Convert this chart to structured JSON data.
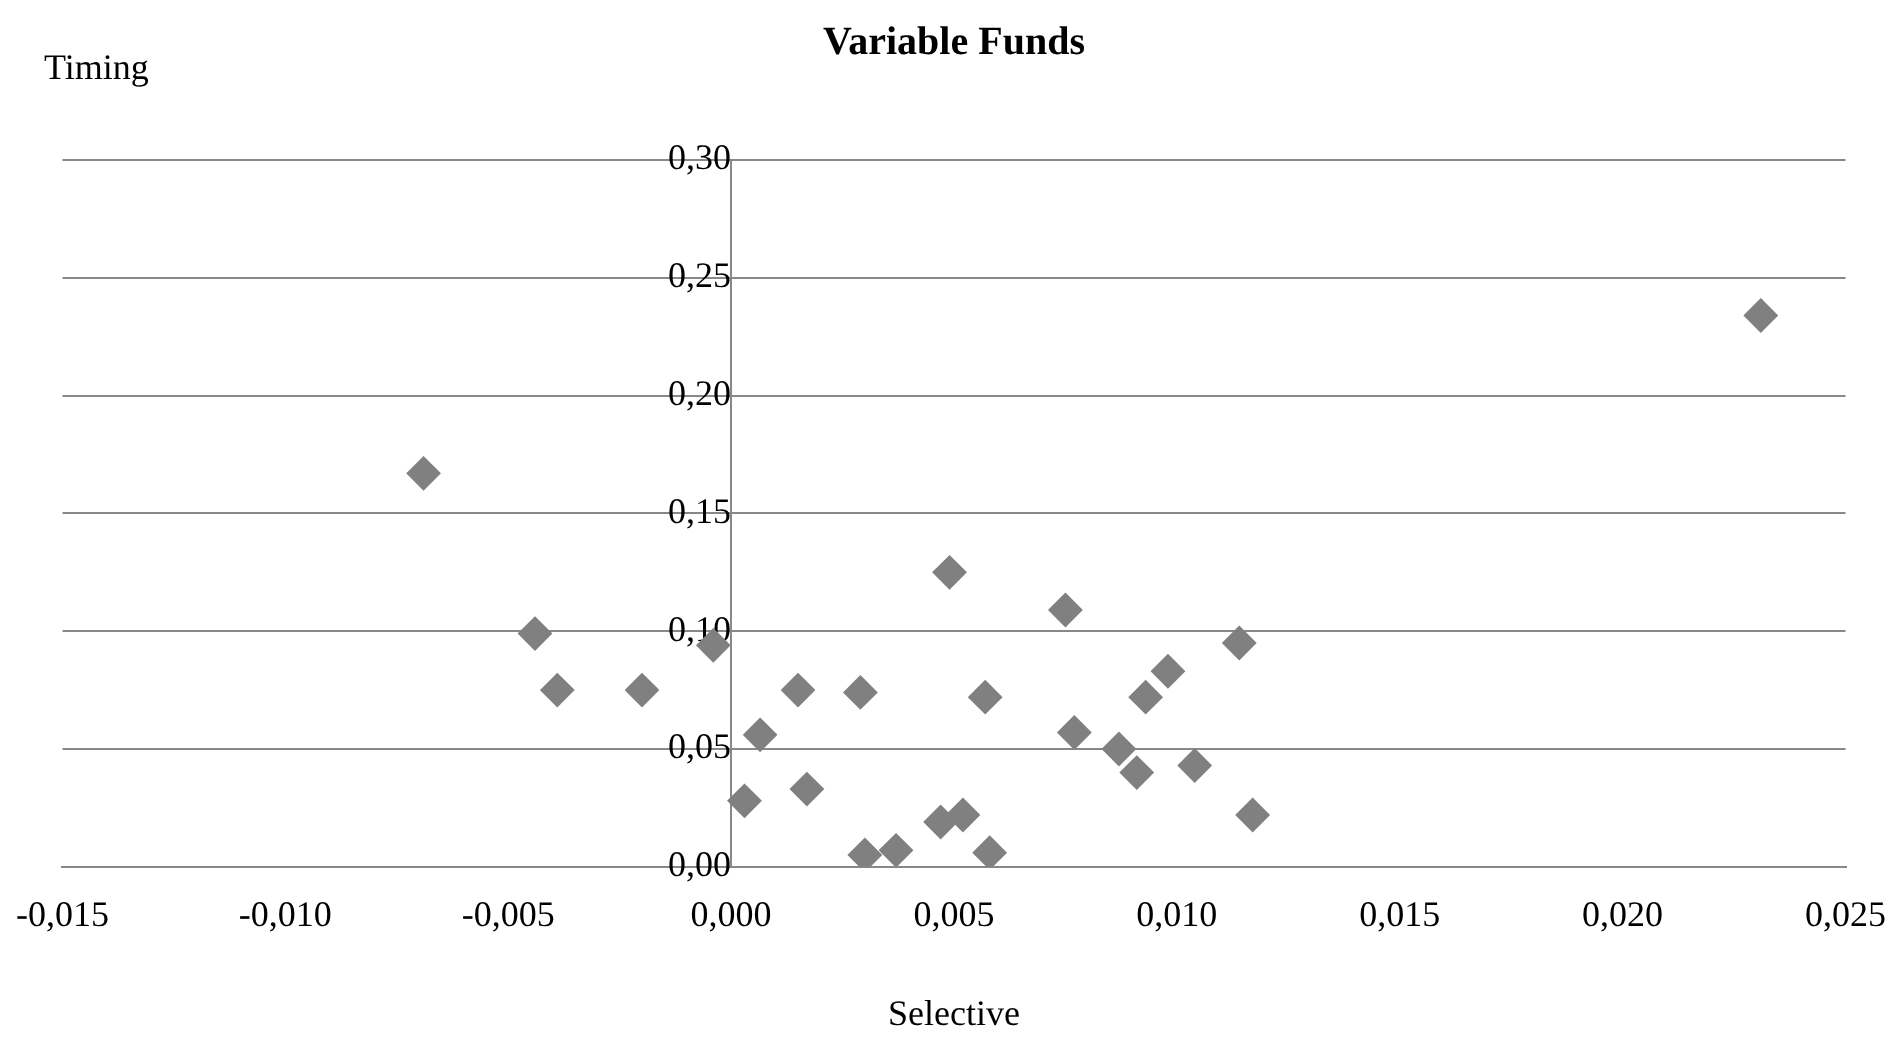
{
  "chart_data": {
    "type": "scatter",
    "title": "Variable Funds",
    "xlabel": "Selective",
    "ylabel": "Timing",
    "x": [
      -0.0069,
      -0.0044,
      -0.0039,
      -0.002,
      -0.0004,
      0.00065,
      0.0003,
      0.0015,
      0.0017,
      0.0029,
      0.003,
      0.0037,
      0.0049,
      0.0047,
      0.0052,
      0.0058,
      0.0057,
      0.0075,
      0.0077,
      0.0093,
      0.0098,
      0.0114,
      0.0087,
      0.0091,
      0.0104,
      0.0117,
      0.0231
    ],
    "values": [
      0.167,
      0.099,
      0.075,
      0.075,
      0.094,
      0.056,
      0.028,
      0.075,
      0.033,
      0.074,
      0.005,
      0.007,
      0.125,
      0.019,
      0.022,
      0.006,
      0.072,
      0.109,
      0.057,
      0.072,
      0.083,
      0.095,
      0.05,
      0.04,
      0.043,
      0.022,
      0.234
    ],
    "color": "#808080",
    "marker": "diamond",
    "xlim": [
      -0.015,
      0.025
    ],
    "xticks": [
      {
        "value": -0.015,
        "label": "-0,015"
      },
      {
        "value": -0.01,
        "label": "-0,010"
      },
      {
        "value": -0.005,
        "label": "-0,005"
      },
      {
        "value": 0,
        "label": "0,000"
      },
      {
        "value": 0.005,
        "label": "0,005"
      },
      {
        "value": 0.01,
        "label": "0,010"
      },
      {
        "value": 0.015,
        "label": "0,015"
      },
      {
        "value": 0.02,
        "label": "0,020"
      },
      {
        "value": 0.025,
        "label": "0,025"
      }
    ],
    "ylim": [
      0,
      0.3
    ],
    "yticks": [
      {
        "value": 0,
        "label": "0,00"
      },
      {
        "value": 0.05,
        "label": "0,05"
      },
      {
        "value": 0.1,
        "label": "0,10"
      },
      {
        "value": 0.15,
        "label": "0,15"
      },
      {
        "value": 0.2,
        "label": "0,20"
      },
      {
        "value": 0.25,
        "label": "0,25"
      },
      {
        "value": 0.3,
        "label": "0,30"
      }
    ],
    "grid": "y",
    "legend": false
  }
}
